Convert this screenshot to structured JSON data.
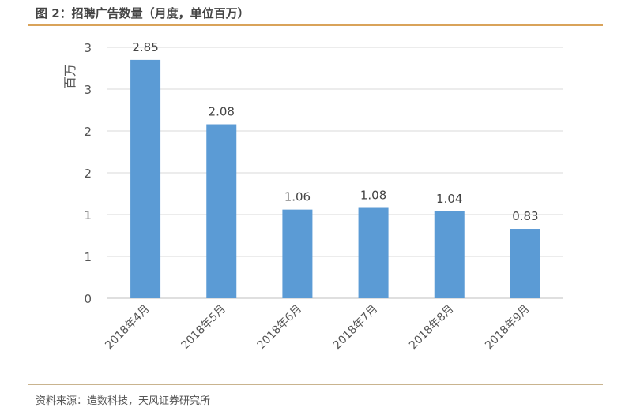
{
  "title": "图 2：招聘广告数量（月度，单位百万）",
  "source": "资料来源：造数科技，天风证券研究所",
  "chart_data": {
    "type": "bar",
    "categories": [
      "2018年4月",
      "2018年5月",
      "2018年6月",
      "2018年7月",
      "2018年8月",
      "2018年9月"
    ],
    "values": [
      2.85,
      2.08,
      1.06,
      1.08,
      1.04,
      0.83
    ],
    "data_labels": [
      "2.85",
      "2.08",
      "1.06",
      "1.08",
      "1.04",
      "0.83"
    ],
    "ylabel": "百万",
    "xlabel": "",
    "ylim": [
      0,
      3
    ],
    "ytick_values": [
      0,
      0.5,
      1,
      1.5,
      2,
      2.5,
      3
    ],
    "ytick_labels": [
      "0",
      "1",
      "1",
      "2",
      "2",
      "3",
      "3"
    ],
    "grid": true,
    "bar_color": "#5b9bd5",
    "accent_color": "#d9a35a"
  }
}
